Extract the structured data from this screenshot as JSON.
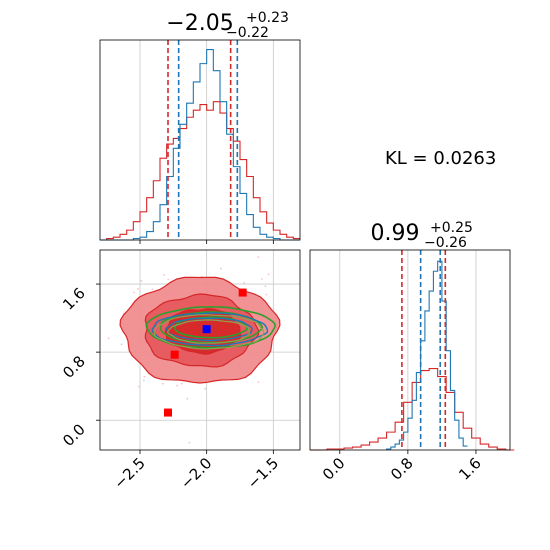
{
  "chart_data": [
    {
      "type": "step-histogram",
      "panel": "top-left",
      "title": {
        "median": "−2.05",
        "plus": "+0.23",
        "minus": "−0.22"
      },
      "xlim": [
        -2.8,
        -1.3
      ],
      "grid": true,
      "colors": {
        "red": "#d62728",
        "blue": "#1f77b4"
      },
      "quantile_lines": {
        "red": [
          -2.29,
          -1.82
        ],
        "blue": [
          -2.21,
          -1.77
        ]
      },
      "series": [
        {
          "name": "red",
          "color": "#d62728",
          "x": [
            -2.8,
            -2.75,
            -2.7,
            -2.65,
            -2.6,
            -2.55,
            -2.5,
            -2.45,
            -2.4,
            -2.35,
            -2.3,
            -2.25,
            -2.2,
            -2.15,
            -2.1,
            -2.05,
            -2.0,
            -1.95,
            -1.9,
            -1.85,
            -1.8,
            -1.75,
            -1.7,
            -1.65,
            -1.6,
            -1.55,
            -1.5,
            -1.45,
            -1.4,
            -1.35
          ],
          "values": [
            0,
            1,
            2,
            4,
            7,
            13,
            20,
            30,
            42,
            58,
            68,
            72,
            79,
            87,
            92,
            96,
            92,
            98,
            90,
            79,
            70,
            57,
            45,
            30,
            20,
            12,
            7,
            4,
            2,
            1
          ]
        },
        {
          "name": "blue",
          "color": "#1f77b4",
          "x": [
            -2.8,
            -2.75,
            -2.7,
            -2.65,
            -2.6,
            -2.55,
            -2.5,
            -2.45,
            -2.4,
            -2.35,
            -2.3,
            -2.25,
            -2.2,
            -2.15,
            -2.1,
            -2.05,
            -2.0,
            -1.95,
            -1.9,
            -1.85,
            -1.8,
            -1.75,
            -1.7,
            -1.65,
            -1.6,
            -1.55,
            -1.5,
            -1.45,
            -1.4,
            -1.35
          ],
          "values": [
            0,
            0,
            0,
            0,
            0,
            1,
            2,
            6,
            13,
            25,
            45,
            65,
            82,
            97,
            112,
            125,
            135,
            120,
            98,
            75,
            52,
            33,
            18,
            9,
            4,
            2,
            1,
            0,
            0,
            0
          ]
        }
      ]
    },
    {
      "type": "contour-scatter",
      "panel": "bottom-left",
      "xlim": [
        -2.8,
        -1.3
      ],
      "ylim": [
        -0.35,
        2.0
      ],
      "x_ticks": [
        "−2.5",
        "−2.0",
        "−1.5"
      ],
      "y_ticks": [
        "0.0",
        "0.8",
        "1.6"
      ],
      "x_tick_values": [
        -2.5,
        -2.0,
        -1.5
      ],
      "y_tick_values": [
        0.0,
        0.8,
        1.6
      ],
      "grid": true,
      "colors": {
        "red_fill": "#d62728",
        "green": "#2ca02c",
        "blue": "#1f77b4",
        "olive": "#8ca252"
      },
      "red_contours": [
        {
          "center": [
            -2.05,
            1.05
          ],
          "rx": 0.58,
          "ry": 0.62
        },
        {
          "center": [
            -2.05,
            1.05
          ],
          "rx": 0.42,
          "ry": 0.42
        },
        {
          "center": [
            -2.03,
            1.05
          ],
          "rx": 0.28,
          "ry": 0.26
        }
      ],
      "green_contours": [
        {
          "center": [
            -1.97,
            1.09
          ],
          "rx": 0.48,
          "ry": 0.24
        },
        {
          "center": [
            -1.97,
            1.09
          ],
          "rx": 0.38,
          "ry": 0.18
        },
        {
          "center": [
            -1.97,
            1.09
          ],
          "rx": 0.27,
          "ry": 0.12
        }
      ],
      "blue_contours": [
        {
          "center": [
            -1.98,
            1.07
          ],
          "rx": 0.43,
          "ry": 0.19
        },
        {
          "center": [
            -1.98,
            1.07
          ],
          "rx": 0.32,
          "ry": 0.13
        }
      ],
      "red_markers": [
        [
          -2.29,
          0.09
        ],
        [
          -1.73,
          1.5
        ],
        [
          -2.24,
          0.77
        ]
      ],
      "blue_marker": [
        -2.0,
        1.07
      ]
    },
    {
      "type": "step-histogram",
      "panel": "bottom-right",
      "title": {
        "median": "0.99",
        "plus": "+0.25",
        "minus": "−0.26"
      },
      "xlim": [
        -0.35,
        2.0
      ],
      "x_ticks": [
        "0.0",
        "0.8",
        "1.6"
      ],
      "x_tick_values": [
        0.0,
        0.8,
        1.6
      ],
      "grid": true,
      "colors": {
        "red": "#d62728",
        "blue": "#1f77b4"
      },
      "quantile_lines": {
        "red": [
          0.73,
          1.24
        ],
        "blue": [
          0.95,
          1.18
        ]
      },
      "series": [
        {
          "name": "red",
          "color": "#d62728",
          "x": [
            -0.35,
            -0.25,
            -0.15,
            -0.05,
            0.05,
            0.15,
            0.25,
            0.35,
            0.45,
            0.55,
            0.65,
            0.75,
            0.85,
            0.95,
            1.05,
            1.15,
            1.25,
            1.35,
            1.45,
            1.55,
            1.65,
            1.75,
            1.85,
            1.95
          ],
          "values": [
            0,
            0,
            1,
            1,
            2,
            3,
            5,
            8,
            12,
            18,
            28,
            48,
            68,
            80,
            82,
            74,
            58,
            38,
            22,
            12,
            6,
            3,
            1,
            0
          ]
        },
        {
          "name": "blue",
          "color": "#1f77b4",
          "x": [
            0.55,
            0.6,
            0.65,
            0.7,
            0.75,
            0.8,
            0.85,
            0.9,
            0.95,
            1.0,
            1.05,
            1.1,
            1.15,
            1.2,
            1.25,
            1.3,
            1.35,
            1.4,
            1.45
          ],
          "values": [
            1,
            3,
            6,
            10,
            18,
            32,
            50,
            78,
            110,
            140,
            160,
            180,
            190,
            150,
            100,
            60,
            30,
            12,
            4
          ]
        }
      ]
    }
  ],
  "annotation": {
    "kl_label": "KL = 0.0263"
  }
}
